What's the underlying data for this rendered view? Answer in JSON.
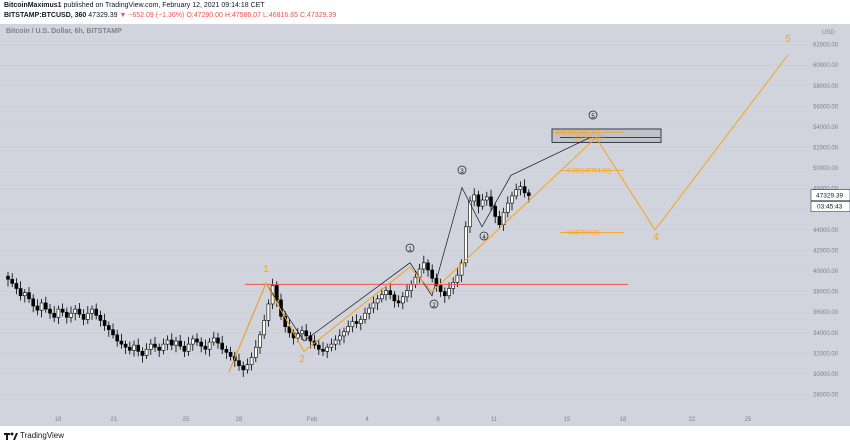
{
  "header": {
    "author": "BitcoinMaximus1",
    "published": "published on TradingView.com, February 12, 2021 09:14:18 CET",
    "symbol": "BITSTAMP:BTCUSD, 360",
    "last": "47329.39",
    "change": "▼ −652.09 (−1.36%)",
    "ohlc_o": "O:47290.00",
    "ohlc_h": "H:47586.07",
    "ohlc_l": "L:46816.65",
    "ohlc_c": "C:47329.39"
  },
  "subtitle": "Bitcoin / U.S. Dollar, 6h, BITSTAMP",
  "price_tag": "47329.39",
  "countdown": "03:45:43",
  "footer": {
    "brand": "TradingView"
  },
  "colors": {
    "up": "#ffffff",
    "down": "#000000",
    "orange": "#f7a21b",
    "red": "#ef5350",
    "bg": "#d1d4dc"
  },
  "chart_data": {
    "type": "candlestick",
    "yaxis": {
      "label": "USD",
      "ylim": [
        26500,
        64000
      ],
      "ticks": [
        28000,
        30000,
        32000,
        34000,
        36000,
        38000,
        40000,
        42000,
        44000,
        46000,
        48000,
        50000,
        52000,
        54000,
        56000,
        58000,
        60000,
        62000
      ]
    },
    "xaxis": {
      "ticks": [
        "18",
        "21",
        "25",
        "28",
        "Feb",
        "4",
        "8",
        "11",
        "15",
        "18",
        "22",
        "25"
      ]
    },
    "close_series": [
      39200,
      38800,
      38300,
      37600,
      37900,
      37300,
      36600,
      36200,
      36900,
      36300,
      35900,
      35500,
      36300,
      36000,
      35500,
      35900,
      36300,
      35800,
      35300,
      35900,
      36300,
      35700,
      35200,
      34700,
      34300,
      33800,
      33200,
      32900,
      32600,
      32300,
      32800,
      32200,
      31800,
      32400,
      32900,
      32600,
      32300,
      32900,
      33300,
      32800,
      33200,
      32700,
      32200,
      32900,
      33400,
      33100,
      32700,
      32400,
      33100,
      33500,
      33000,
      32400,
      32100,
      31700,
      31300,
      30800,
      30400,
      30900,
      31600,
      32600,
      33800,
      35200,
      36800,
      38600,
      37200,
      35600,
      34600,
      34000,
      33500,
      33900,
      34200,
      33700,
      33200,
      32800,
      32400,
      32200,
      32600,
      32900,
      33300,
      33700,
      34100,
      34600,
      35100,
      34900,
      35300,
      35900,
      36400,
      36900,
      37300,
      37700,
      38100,
      37700,
      37100,
      36900,
      37500,
      38100,
      38700,
      39400,
      40200,
      40800,
      40100,
      39300,
      38600,
      38000,
      37600,
      38300,
      38900,
      39600,
      40800,
      44300,
      46800,
      47400,
      46300,
      46900,
      47200,
      46300,
      45300,
      44500,
      45700,
      46600,
      47300,
      47900,
      48200,
      47600,
      47329.39
    ],
    "wave_lines": {
      "black": [
        [
          1,
          30200
        ],
        [
          2,
          38800
        ],
        [
          3,
          33200
        ],
        [
          4,
          40800
        ],
        [
          5,
          37600
        ],
        [
          6,
          48100
        ],
        [
          7,
          44300
        ],
        [
          8,
          49300
        ],
        [
          9,
          52963
        ]
      ],
      "orange": [
        [
          1,
          30200
        ],
        [
          2,
          38800
        ],
        [
          3,
          32200
        ],
        [
          4,
          40400
        ],
        [
          5,
          38000
        ],
        [
          6,
          52963
        ],
        [
          7,
          44000
        ],
        [
          8,
          61000
        ]
      ]
    },
    "wave_labels": [
      {
        "text": "1",
        "color": "orange"
      },
      {
        "text": "2",
        "color": "orange"
      },
      {
        "text": "4",
        "color": "orange"
      },
      {
        "text": "5",
        "color": "orange"
      },
      {
        "text": "①",
        "color": "black"
      },
      {
        "text": "②",
        "color": "black"
      },
      {
        "text": "③",
        "color": "black"
      },
      {
        "text": "④",
        "color": "black"
      },
      {
        "text": "⑤",
        "color": "black"
      }
    ],
    "support_line": {
      "price": 38700,
      "color": "#ef5350"
    },
    "fib_levels": [
      {
        "label": "0.618(53483.40)",
        "price": 53483.4
      },
      {
        "label": "1(52963.30)",
        "price": 52963.3
      },
      {
        "label": "0.382(49754.02)",
        "price": 49754.02
      },
      {
        "label": "0(43750.92)",
        "price": 43750.92
      }
    ],
    "target_box": {
      "top": 53800,
      "bottom": 52500
    }
  }
}
